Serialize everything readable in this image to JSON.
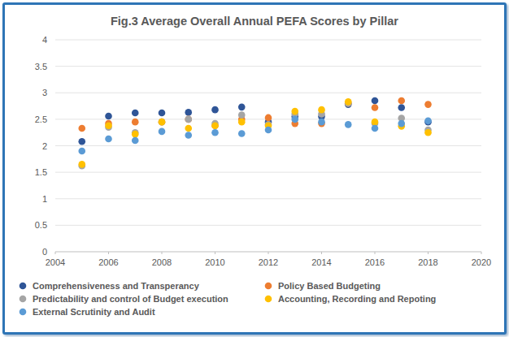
{
  "chart_data": {
    "type": "scatter",
    "title": "Fig.3 Average Overall Annual PEFA Scores by Pillar",
    "x": [
      2005,
      2006,
      2007,
      2008,
      2009,
      2010,
      2011,
      2012,
      2013,
      2014,
      2015,
      2016,
      2017,
      2018
    ],
    "series": [
      {
        "name": "Comprehensiveness and Transperancy",
        "color": "#2f5597",
        "values": [
          2.08,
          2.56,
          2.62,
          2.62,
          2.63,
          2.68,
          2.73,
          2.45,
          2.55,
          2.55,
          2.78,
          2.85,
          2.72,
          2.45
        ]
      },
      {
        "name": "Policy Based Budgeting",
        "color": "#ed7d31",
        "values": [
          2.33,
          2.42,
          2.45,
          2.45,
          2.5,
          2.38,
          2.5,
          2.53,
          2.42,
          2.42,
          2.8,
          2.72,
          2.85,
          2.78
        ]
      },
      {
        "name": "Predictability and control of Budget execution",
        "color": "#a5a5a5",
        "values": [
          1.62,
          2.35,
          2.25,
          2.45,
          2.5,
          2.42,
          2.58,
          2.4,
          2.6,
          2.6,
          2.8,
          2.42,
          2.52,
          2.3
        ]
      },
      {
        "name": "Accounting, Recording and Repoting",
        "color": "#ffc000",
        "values": [
          1.65,
          2.38,
          2.22,
          2.45,
          2.33,
          2.38,
          2.45,
          2.38,
          2.65,
          2.68,
          2.83,
          2.45,
          2.37,
          2.25
        ]
      },
      {
        "name": "External Scrutinity and Audit",
        "color": "#5b9bd5",
        "values": [
          1.9,
          2.13,
          2.1,
          2.27,
          2.2,
          2.25,
          2.23,
          2.3,
          2.5,
          2.45,
          2.4,
          2.33,
          2.42,
          2.47
        ]
      }
    ],
    "xlim": [
      2004,
      2020
    ],
    "xticks": [
      2004,
      2006,
      2008,
      2010,
      2012,
      2014,
      2016,
      2018,
      2020
    ],
    "ylim": [
      0,
      4
    ],
    "yticks": [
      0,
      0.5,
      1,
      1.5,
      2,
      2.5,
      3,
      3.5,
      4
    ],
    "grid": true,
    "legend": "bottom",
    "marker": "circle"
  }
}
